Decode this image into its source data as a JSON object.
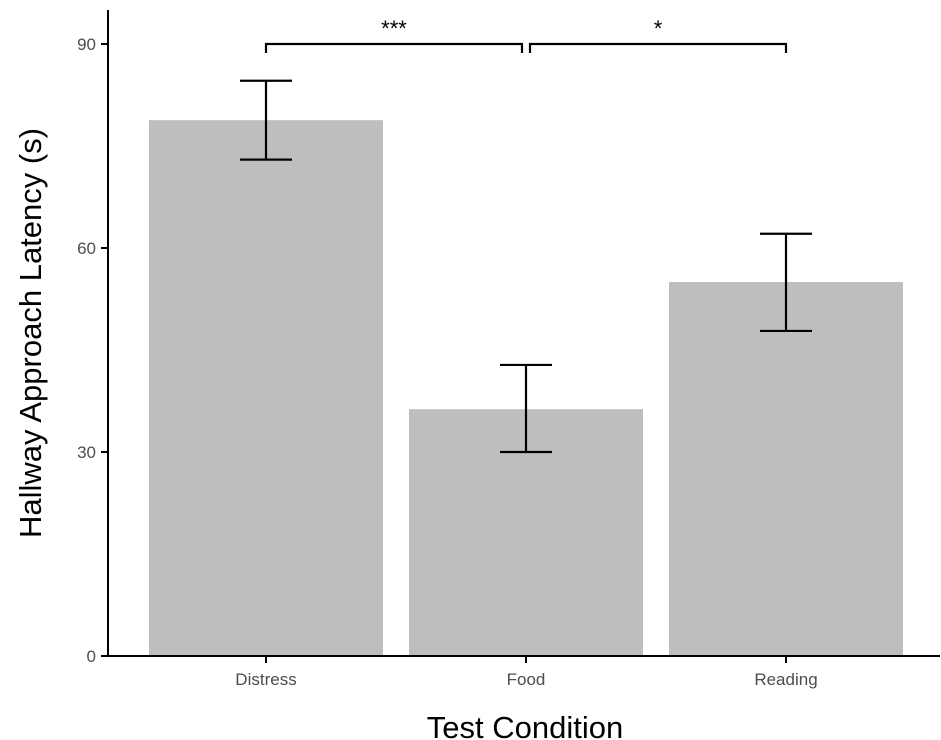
{
  "chart_data": {
    "type": "bar",
    "title": "",
    "xlabel": "Test Condition",
    "ylabel": "Hallway Approach Latency (s)",
    "categories": [
      "Distress",
      "Food",
      "Reading"
    ],
    "values": [
      78.8,
      36.3,
      55.0
    ],
    "error_bars": [
      {
        "low": 73.0,
        "high": 84.6
      },
      {
        "low": 30.0,
        "high": 42.8
      },
      {
        "low": 47.8,
        "high": 62.1
      }
    ],
    "ylim": [
      0,
      95
    ],
    "yticks": [
      0,
      30,
      60,
      90
    ],
    "grid": false,
    "bar_color": "#bebebe",
    "significance": [
      {
        "from": 0,
        "to": 1,
        "label": "***"
      },
      {
        "from": 1,
        "to": 2,
        "label": "*"
      }
    ]
  }
}
